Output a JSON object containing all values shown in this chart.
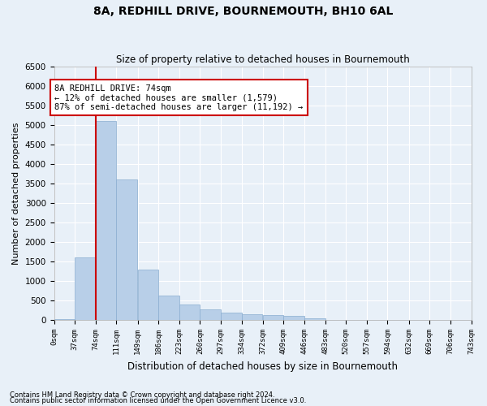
{
  "title": "8A, REDHILL DRIVE, BOURNEMOUTH, BH10 6AL",
  "subtitle": "Size of property relative to detached houses in Bournemouth",
  "xlabel": "Distribution of detached houses by size in Bournemouth",
  "ylabel": "Number of detached properties",
  "background_color": "#e8f0f8",
  "bar_color": "#b8cfe8",
  "bar_edge_color": "#8aadd0",
  "grid_color": "#ffffff",
  "marker_color": "#cc0000",
  "marker_value": 74,
  "bin_edges": [
    0,
    37,
    74,
    111,
    149,
    186,
    223,
    260,
    297,
    334,
    372,
    409,
    446,
    483,
    520,
    557,
    594,
    632,
    669,
    706,
    743
  ],
  "bar_values": [
    30,
    1600,
    5100,
    3600,
    1300,
    630,
    390,
    280,
    190,
    160,
    120,
    100,
    50,
    0,
    0,
    0,
    0,
    0,
    0,
    0
  ],
  "ylim": [
    0,
    6500
  ],
  "yticks": [
    0,
    500,
    1000,
    1500,
    2000,
    2500,
    3000,
    3500,
    4000,
    4500,
    5000,
    5500,
    6000,
    6500
  ],
  "annotation_text": "8A REDHILL DRIVE: 74sqm\n← 12% of detached houses are smaller (1,579)\n87% of semi-detached houses are larger (11,192) →",
  "annotation_box_color": "#ffffff",
  "annotation_border_color": "#cc0000",
  "footnote1": "Contains HM Land Registry data © Crown copyright and database right 2024.",
  "footnote2": "Contains public sector information licensed under the Open Government Licence v3.0.",
  "tick_labels": [
    "0sqm",
    "37sqm",
    "74sqm",
    "111sqm",
    "149sqm",
    "186sqm",
    "223sqm",
    "260sqm",
    "297sqm",
    "334sqm",
    "372sqm",
    "409sqm",
    "446sqm",
    "483sqm",
    "520sqm",
    "557sqm",
    "594sqm",
    "632sqm",
    "669sqm",
    "706sqm",
    "743sqm"
  ]
}
